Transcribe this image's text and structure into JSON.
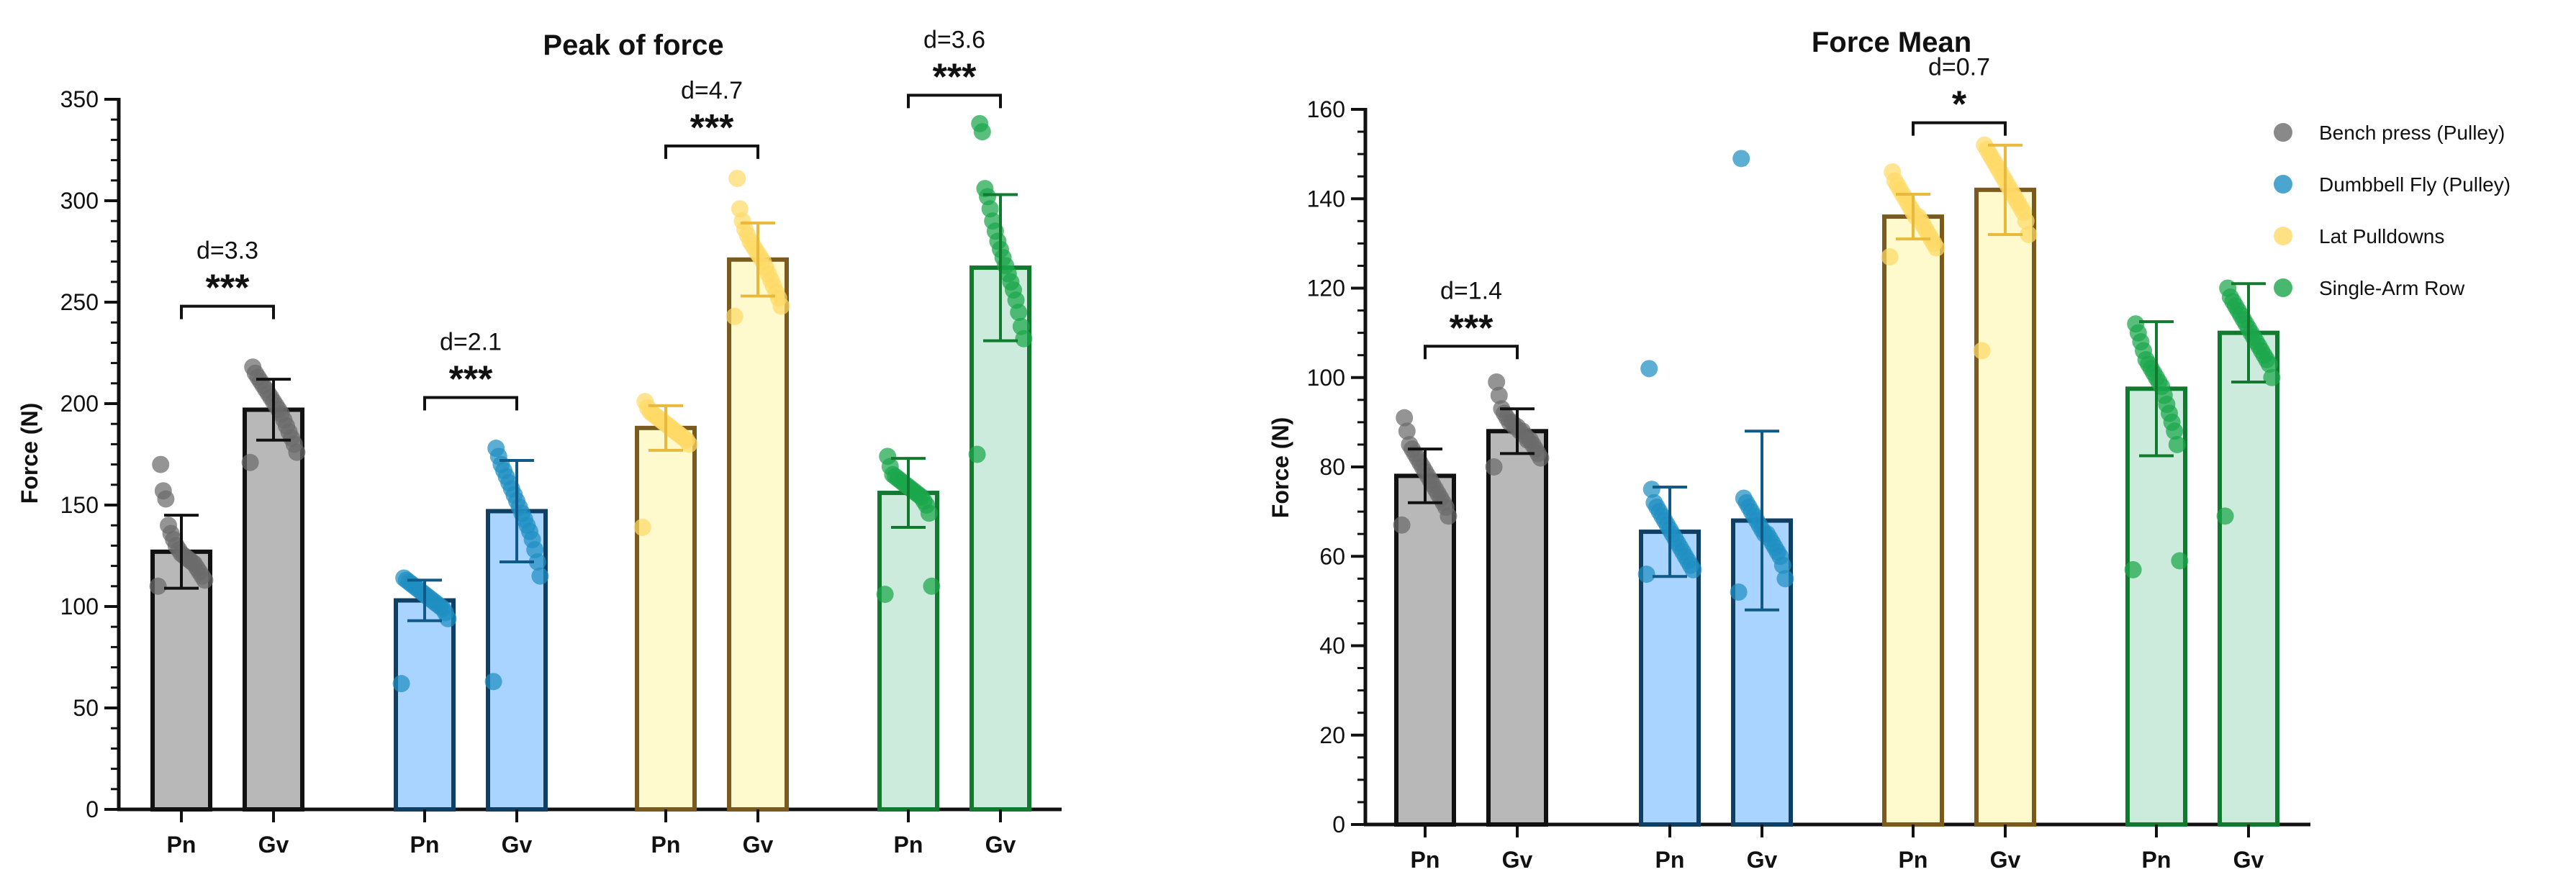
{
  "chart_data": [
    {
      "type": "bar",
      "title": "Peak of force",
      "ylabel": "Force (N)",
      "xlabel": "",
      "ylim": [
        0,
        350
      ],
      "yticks": [
        0,
        50,
        100,
        150,
        200,
        250,
        300,
        350
      ],
      "groups": [
        "Bench press (Pulley)",
        "Dumbbell Fly (Pulley)",
        "Lat Pulldowns",
        "Single-Arm Row"
      ],
      "bars": [
        {
          "group": 0,
          "label": "Pn",
          "mean": 127,
          "sd": 18,
          "points": [
            110,
            113,
            115,
            117,
            119,
            121,
            122,
            123,
            124,
            125,
            126,
            128,
            130,
            133,
            136,
            140,
            153,
            157,
            170
          ]
        },
        {
          "group": 0,
          "label": "Gv",
          "mean": 197,
          "sd": 15,
          "points": [
            171,
            176,
            180,
            183,
            186,
            189,
            192,
            195,
            197,
            199,
            201,
            203,
            205,
            207,
            209,
            211,
            213,
            215,
            218
          ]
        },
        {
          "group": 1,
          "label": "Pn",
          "mean": 103,
          "sd": 10,
          "points": [
            62,
            94,
            97,
            99,
            100,
            101,
            102,
            103,
            104,
            105,
            106,
            107,
            108,
            109,
            110,
            111,
            112,
            113,
            114
          ]
        },
        {
          "group": 1,
          "label": "Gv",
          "mean": 147,
          "sd": 25,
          "points": [
            63,
            115,
            122,
            128,
            133,
            137,
            140,
            143,
            146,
            149,
            152,
            155,
            158,
            161,
            164,
            167,
            170,
            174,
            178
          ]
        },
        {
          "group": 2,
          "label": "Pn",
          "mean": 188,
          "sd": 11,
          "points": [
            139,
            180,
            182,
            183,
            184,
            185,
            186,
            187,
            188,
            189,
            190,
            191,
            192,
            193,
            194,
            195,
            196,
            198,
            201
          ]
        },
        {
          "group": 2,
          "label": "Gv",
          "mean": 271,
          "sd": 18,
          "points": [
            243,
            248,
            252,
            255,
            258,
            261,
            264,
            267,
            270,
            272,
            274,
            276,
            278,
            280,
            283,
            286,
            290,
            296,
            311
          ]
        },
        {
          "group": 3,
          "label": "Pn",
          "mean": 156,
          "sd": 17,
          "points": [
            106,
            110,
            146,
            150,
            152,
            154,
            155,
            156,
            157,
            158,
            159,
            160,
            161,
            162,
            163,
            164,
            165,
            169,
            174
          ]
        },
        {
          "group": 3,
          "label": "Gv",
          "mean": 267,
          "sd": 36,
          "points": [
            175,
            232,
            238,
            245,
            251,
            256,
            260,
            264,
            268,
            272,
            276,
            280,
            285,
            290,
            296,
            302,
            306,
            334,
            338
          ]
        }
      ],
      "comparisons": [
        {
          "group": 0,
          "effect": "d=3.3",
          "stars": "***",
          "bracket_y": 248
        },
        {
          "group": 1,
          "effect": "d=2.1",
          "stars": "***",
          "bracket_y": 203
        },
        {
          "group": 2,
          "effect": "d=4.7",
          "stars": "***",
          "bracket_y": 327
        },
        {
          "group": 3,
          "effect": "d=3.6",
          "stars": "***",
          "bracket_y": 352
        }
      ]
    },
    {
      "type": "bar",
      "title": "Force Mean",
      "ylabel": "Force (N)",
      "xlabel": "",
      "ylim": [
        0,
        160
      ],
      "yticks": [
        0,
        20,
        40,
        60,
        80,
        100,
        120,
        140,
        160
      ],
      "groups": [
        "Bench press (Pulley)",
        "Dumbbell Fly (Pulley)",
        "Lat Pulldowns",
        "Single-Arm Row"
      ],
      "bars": [
        {
          "group": 0,
          "label": "Pn",
          "mean": 78,
          "sd": 6,
          "points": [
            67,
            69,
            71,
            72,
            73,
            74,
            75,
            76,
            77,
            78,
            79,
            80,
            81,
            82,
            83,
            84,
            85,
            88,
            91
          ]
        },
        {
          "group": 0,
          "label": "Gv",
          "mean": 88,
          "sd": 5,
          "points": [
            80,
            82,
            83,
            84,
            85,
            86,
            86,
            87,
            88,
            88,
            89,
            89,
            90,
            90,
            91,
            92,
            93,
            96,
            99
          ]
        },
        {
          "group": 1,
          "label": "Pn",
          "mean": 65.5,
          "sd": 10,
          "points": [
            56,
            57,
            58,
            59,
            60,
            61,
            62,
            63,
            64,
            65,
            66,
            67,
            68,
            69,
            70,
            71,
            72,
            75,
            102
          ]
        },
        {
          "group": 1,
          "label": "Gv",
          "mean": 68,
          "sd": 20,
          "points": [
            52,
            55,
            58,
            60,
            61,
            62,
            63,
            64,
            65,
            65,
            66,
            67,
            68,
            69,
            70,
            71,
            72,
            73,
            149
          ]
        },
        {
          "group": 2,
          "label": "Pn",
          "mean": 136,
          "sd": 5,
          "points": [
            127,
            129,
            130,
            131,
            132,
            133,
            134,
            135,
            136,
            136,
            137,
            138,
            139,
            140,
            141,
            142,
            143,
            144,
            146
          ]
        },
        {
          "group": 2,
          "label": "Gv",
          "mean": 142,
          "sd": 10,
          "points": [
            106,
            132,
            135,
            137,
            138,
            139,
            140,
            141,
            142,
            143,
            144,
            145,
            146,
            147,
            148,
            149,
            150,
            151,
            152
          ]
        },
        {
          "group": 3,
          "label": "Pn",
          "mean": 97.5,
          "sd": 15,
          "points": [
            57,
            59,
            85,
            88,
            90,
            92,
            94,
            96,
            98,
            99,
            100,
            101,
            102,
            103,
            104,
            106,
            108,
            110,
            112
          ]
        },
        {
          "group": 3,
          "label": "Gv",
          "mean": 110,
          "sd": 11,
          "points": [
            69,
            100,
            103,
            104,
            105,
            106,
            107,
            108,
            109,
            110,
            111,
            112,
            113,
            114,
            115,
            116,
            117,
            118,
            120
          ]
        }
      ],
      "comparisons": [
        {
          "group": 0,
          "effect": "d=1.4",
          "stars": "***",
          "bracket_y": 107
        },
        {
          "group": 2,
          "effect": "d=0.7",
          "stars": "*",
          "bracket_y": 157
        }
      ],
      "legend": {
        "position": "right",
        "entries": [
          {
            "label": "Bench press (Pulley)",
            "group": 0
          },
          {
            "label": "Dumbbell Fly (Pulley)",
            "group": 1
          },
          {
            "label": "Lat Pulldowns",
            "group": 2
          },
          {
            "label": "Single-Arm Row",
            "group": 3
          }
        ]
      }
    }
  ],
  "colors": {
    "groups": [
      {
        "fill": "#b8b8b8",
        "edge": "#111111",
        "dot": "#6b6b6b"
      },
      {
        "fill": "#a9d4ff",
        "edge": "#0f3f63",
        "dot": "#1f8fc2"
      },
      {
        "fill": "#fffacd",
        "edge": "#7a5a1e",
        "dot": "#ffd966"
      },
      {
        "fill": "#cdebdc",
        "edge": "#117a2e",
        "dot": "#1aa64b"
      }
    ],
    "errorbars": [
      "#111111",
      "#0f5a88",
      "#e8b93a",
      "#117a2e"
    ]
  }
}
